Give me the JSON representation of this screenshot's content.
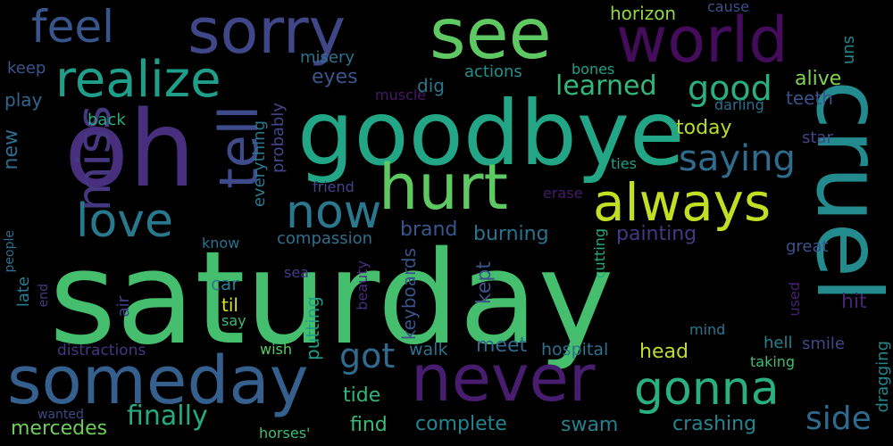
{
  "background": "#000000",
  "words": [
    {
      "text": "saturday",
      "color": "#45bf6e"
    },
    {
      "text": "goodbye",
      "color": "#22a685"
    },
    {
      "text": "oh",
      "color": "#472f7d"
    },
    {
      "text": "cruel",
      "color": "#238a8d"
    },
    {
      "text": "see",
      "color": "#5ec962"
    },
    {
      "text": "sorry",
      "color": "#404788"
    },
    {
      "text": "world",
      "color": "#440c5b"
    },
    {
      "text": "hurt",
      "color": "#5ec962"
    },
    {
      "text": "never",
      "color": "#481d6f"
    },
    {
      "text": "someday",
      "color": "#355f8d"
    },
    {
      "text": "always",
      "color": "#c2df23"
    },
    {
      "text": "realize",
      "color": "#1f9e89"
    },
    {
      "text": "feel",
      "color": "#39568c"
    },
    {
      "text": "miss",
      "color": "#453781"
    },
    {
      "text": "tell",
      "color": "#3e4a89"
    },
    {
      "text": "love",
      "color": "#29798e"
    },
    {
      "text": "now",
      "color": "#2a788e"
    },
    {
      "text": "gonna",
      "color": "#2ab07f"
    },
    {
      "text": "good",
      "color": "#2ab07f"
    },
    {
      "text": "saying",
      "color": "#2f6c8e"
    },
    {
      "text": "learned",
      "color": "#35b779"
    },
    {
      "text": "got",
      "color": "#306a8e"
    },
    {
      "text": "finally",
      "color": "#25ab82"
    },
    {
      "text": "side",
      "color": "#2f6b8e"
    },
    {
      "text": "crashing",
      "color": "#25858e"
    },
    {
      "text": "complete",
      "color": "#25848e"
    },
    {
      "text": "mercedes",
      "color": "#6ccd5a"
    },
    {
      "text": "find",
      "color": "#3bbb75"
    },
    {
      "text": "swam",
      "color": "#27808e"
    },
    {
      "text": "tide",
      "color": "#31b57b"
    },
    {
      "text": "head",
      "color": "#bade28"
    },
    {
      "text": "meet",
      "color": "#31688e"
    },
    {
      "text": "hospital",
      "color": "#2d718e"
    },
    {
      "text": "walk",
      "color": "#2d708e"
    },
    {
      "text": "brand",
      "color": "#39568c"
    },
    {
      "text": "kept",
      "color": "#3b528b"
    },
    {
      "text": "burning",
      "color": "#2c728e"
    },
    {
      "text": "painting",
      "color": "#453882"
    },
    {
      "text": "keyboards",
      "color": "#3b528b"
    },
    {
      "text": "compassion",
      "color": "#2e6f8e"
    },
    {
      "text": "hit",
      "color": "#482475"
    },
    {
      "text": "smile",
      "color": "#3f4889"
    },
    {
      "text": "hell",
      "color": "#26828e"
    },
    {
      "text": "taking",
      "color": "#3dbc74"
    },
    {
      "text": "dragging",
      "color": "#24868e"
    },
    {
      "text": "mind",
      "color": "#2a788e"
    },
    {
      "text": "today",
      "color": "#b5de2b"
    },
    {
      "text": "alive",
      "color": "#7fd34e"
    },
    {
      "text": "teeth",
      "color": "#3b528b"
    },
    {
      "text": "darling",
      "color": "#2e6e8e"
    },
    {
      "text": "star",
      "color": "#3f4788"
    },
    {
      "text": "ties",
      "color": "#1fa187"
    },
    {
      "text": "erase",
      "color": "#481b6d"
    },
    {
      "text": "great",
      "color": "#3a538b"
    },
    {
      "text": "used",
      "color": "#482071"
    },
    {
      "text": "horizon",
      "color": "#90d743"
    },
    {
      "text": "cause",
      "color": "#3b518b"
    },
    {
      "text": "sun",
      "color": "#24878e"
    },
    {
      "text": "bones",
      "color": "#1fa088"
    },
    {
      "text": "muscle",
      "color": "#481769"
    },
    {
      "text": "actions",
      "color": "#20928c"
    },
    {
      "text": "dig",
      "color": "#29788e"
    },
    {
      "text": "eyes",
      "color": "#39568c"
    },
    {
      "text": "misery",
      "color": "#2d718e"
    },
    {
      "text": "keep",
      "color": "#3a548c"
    },
    {
      "text": "play",
      "color": "#31668e"
    },
    {
      "text": "back",
      "color": "#27ad81"
    },
    {
      "text": "new",
      "color": "#2f6c8e"
    },
    {
      "text": "everything",
      "color": "#2a778e"
    },
    {
      "text": "probably",
      "color": "#404688"
    },
    {
      "text": "friend",
      "color": "#3f4889"
    },
    {
      "text": "know",
      "color": "#2c718e"
    },
    {
      "text": "people",
      "color": "#2e6e8e"
    },
    {
      "text": "late",
      "color": "#287d8e"
    },
    {
      "text": "end",
      "color": "#443a83"
    },
    {
      "text": "air",
      "color": "#404588"
    },
    {
      "text": "car",
      "color": "#287c8e"
    },
    {
      "text": "til",
      "color": "#d8e219"
    },
    {
      "text": "say",
      "color": "#3bbb75"
    },
    {
      "text": "sea",
      "color": "#433e85"
    },
    {
      "text": "beauty",
      "color": "#472f7d"
    },
    {
      "text": "putting",
      "color": "#1f9f88"
    },
    {
      "text": "cutting",
      "color": "#25ab82"
    },
    {
      "text": "distractions",
      "color": "#453781"
    },
    {
      "text": "wish",
      "color": "#5ac864"
    },
    {
      "text": "wanted",
      "color": "#3e4989"
    },
    {
      "text": "horses'",
      "color": "#3fbc73"
    }
  ]
}
